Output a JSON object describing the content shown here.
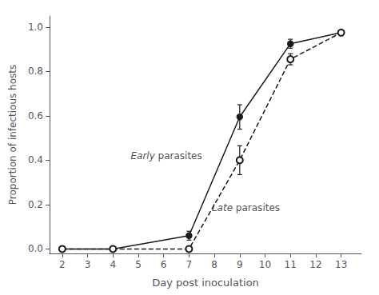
{
  "chart_data": {
    "type": "line",
    "xlabel": "Day post inoculation",
    "ylabel": "Proportion of infectious hosts",
    "x": [
      2,
      4,
      7,
      9,
      11,
      13
    ],
    "series": [
      {
        "values": [
          0.0,
          0.0,
          0.06,
          0.595,
          0.925,
          0.975
        ],
        "errors": [
          0.0,
          0.0,
          0.02,
          0.055,
          0.02,
          0.01
        ],
        "color": "#1a1a1a",
        "marker": "circle",
        "line_style": "solid"
      },
      {
        "values": [
          0.0,
          0.0,
          0.0,
          0.4,
          0.855,
          0.975
        ],
        "errors": [
          0.0,
          0.0,
          0.0,
          0.065,
          0.025,
          0.01
        ],
        "color": "#1a1a1a",
        "marker": "open_circle",
        "line_style": "dashed"
      }
    ],
    "annotations": [
      {
        "text": "Early parasites",
        "x": 4.7,
        "y": 0.42
      },
      {
        "text": "Late parasites",
        "x": 7.9,
        "y": 0.185
      }
    ],
    "xlim": [
      1.5,
      13.8
    ],
    "ylim": [
      -0.02,
      1.05
    ],
    "xticks": [
      2,
      3,
      4,
      5,
      6,
      7,
      8,
      9,
      10,
      11,
      12,
      13
    ],
    "yticks": [
      {
        "value": 0.0,
        "label": "0.0"
      },
      0.2,
      0.4,
      0.6,
      0.8,
      {
        "value": 1.0,
        "label": "1.0"
      }
    ],
    "grid": false
  }
}
